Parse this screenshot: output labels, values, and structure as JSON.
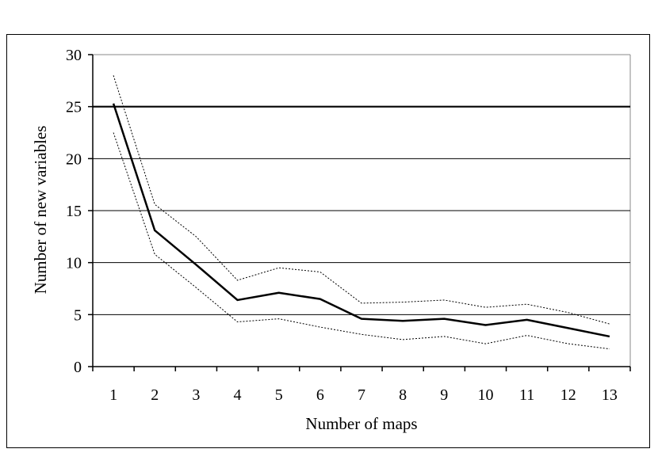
{
  "chart_data": {
    "type": "line",
    "title": "",
    "xlabel": "Number of maps",
    "ylabel": "Number of new variables",
    "categories": [
      "1",
      "2",
      "3",
      "4",
      "5",
      "6",
      "7",
      "8",
      "9",
      "10",
      "11",
      "12",
      "13"
    ],
    "ylim": [
      0,
      30
    ],
    "yticks": [
      "0",
      "5",
      "10",
      "15",
      "20",
      "25",
      "30"
    ],
    "grid": true,
    "reference_line": 25,
    "series": [
      {
        "values": [
          25.3,
          13.1,
          9.8,
          6.4,
          7.1,
          6.5,
          4.6,
          4.4,
          4.6,
          4.0,
          4.5,
          3.7,
          2.9
        ],
        "style": "solid"
      },
      {
        "values": [
          28.0,
          15.6,
          12.5,
          8.3,
          9.5,
          9.1,
          6.1,
          6.2,
          6.4,
          5.7,
          6.0,
          5.2,
          4.1
        ],
        "style": "dotted"
      },
      {
        "values": [
          22.5,
          10.8,
          7.6,
          4.3,
          4.6,
          3.8,
          3.1,
          2.6,
          2.9,
          2.2,
          3.0,
          2.2,
          1.7
        ],
        "style": "dotted"
      }
    ],
    "colors": {
      "line": "#000000",
      "grid": "#000000",
      "reference": "#000000"
    }
  }
}
